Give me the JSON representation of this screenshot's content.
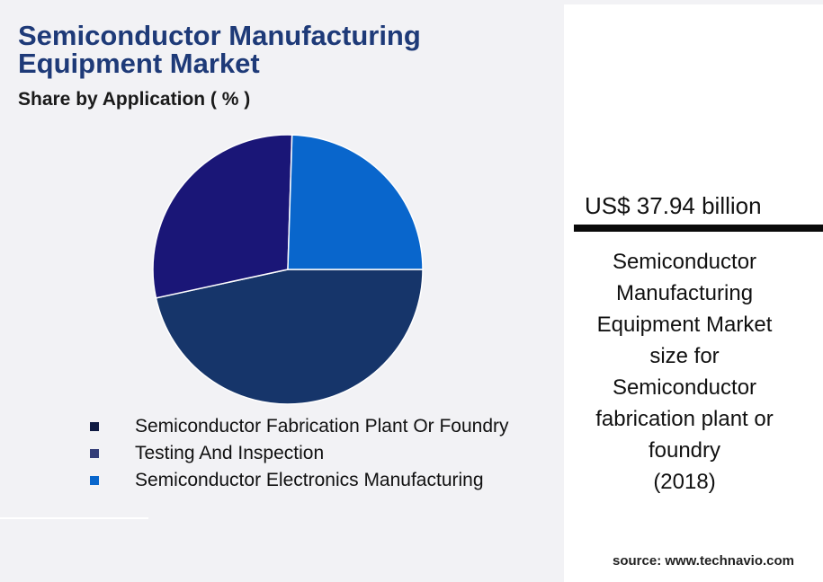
{
  "header": {
    "title": "Semiconductor Manufacturing Equipment Market",
    "subtitle": "Share by Application ( % )"
  },
  "chart_data": {
    "type": "pie",
    "categories": [
      "Semiconductor Fabrication Plant Or Foundry",
      "Testing And Inspection",
      "Semiconductor Electronics Manufacturing"
    ],
    "values": [
      46.6,
      28.9,
      24.5
    ],
    "colors": [
      "#16356a",
      "#1a1677",
      "#0966cc"
    ],
    "legend_colors": [
      "#0f1a42",
      "#333d78",
      "#0966cc"
    ],
    "legend": "bottom"
  },
  "panel": {
    "market_value": "US$ 37.94 billion",
    "description_lines": [
      "Semiconductor",
      "Manufacturing",
      "Equipment Market",
      "size for",
      "Semiconductor",
      "fabrication plant or",
      "foundry",
      "(2018)"
    ]
  },
  "source": "source: www.technavio.com"
}
